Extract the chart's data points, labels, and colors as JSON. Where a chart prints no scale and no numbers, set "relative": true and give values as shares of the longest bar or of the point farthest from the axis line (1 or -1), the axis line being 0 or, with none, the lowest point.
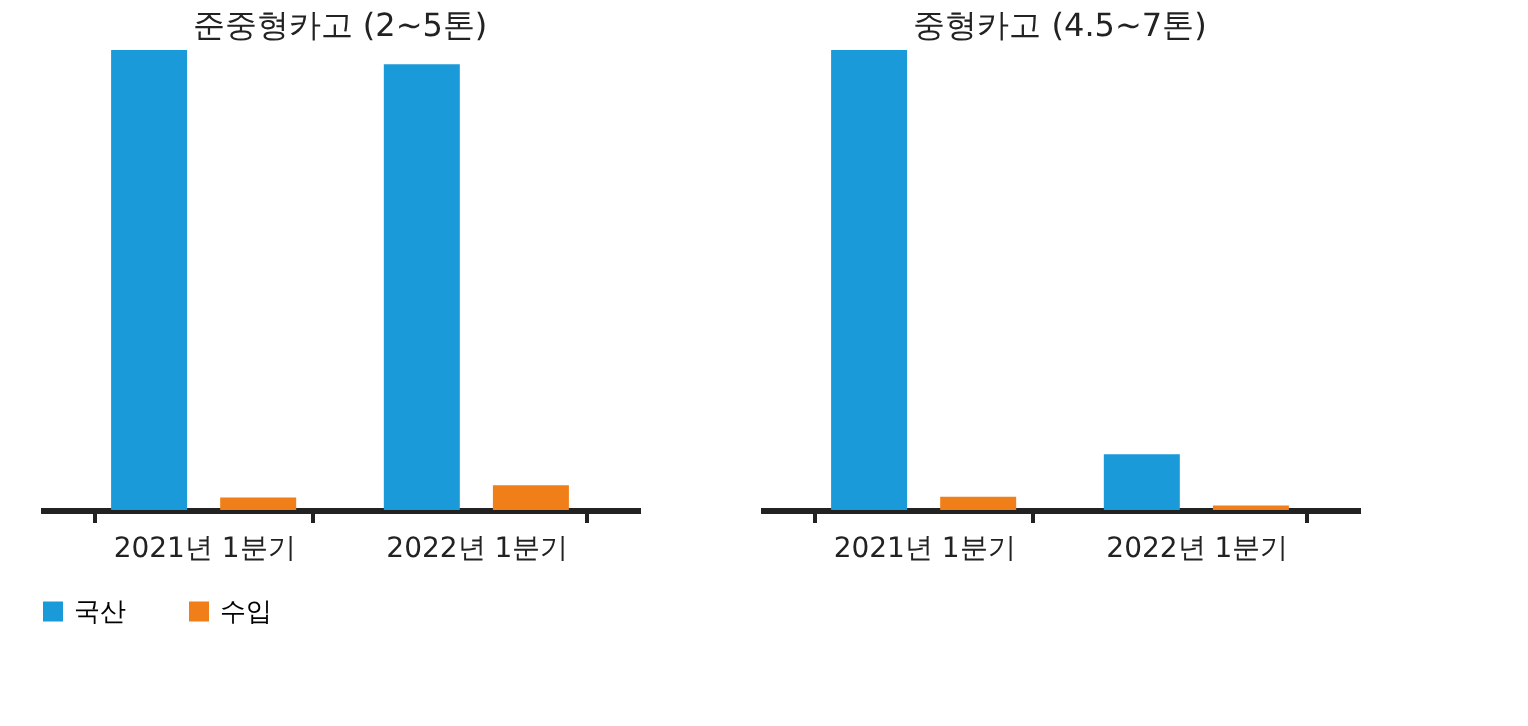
{
  "chart_data": [
    {
      "type": "bar",
      "title": "준중형카고 (2~5톤)",
      "categories": [
        "2021년 1분기",
        "2022년 1분기"
      ],
      "relative": true,
      "legend": "bottom",
      "grid": false,
      "series": [
        {
          "name": "국산",
          "color": "#1a9ad9",
          "values": [
            1,
            0.969
          ]
        },
        {
          "name": "수입",
          "color": "#f07f1a",
          "values": [
            0.027,
            0.054
          ]
        }
      ]
    },
    {
      "type": "bar",
      "title": "중형카고 (4.5~7톤)",
      "categories": [
        "2021년 1분기",
        "2022년 1분기"
      ],
      "relative": true,
      "legend": "bottom",
      "grid": false,
      "series": [
        {
          "name": "국산",
          "color": "#1a9ad9",
          "values": [
            1,
            0.121
          ]
        },
        {
          "name": "수입",
          "color": "#f07f1a",
          "values": [
            0.029,
            0.01
          ]
        }
      ]
    }
  ]
}
